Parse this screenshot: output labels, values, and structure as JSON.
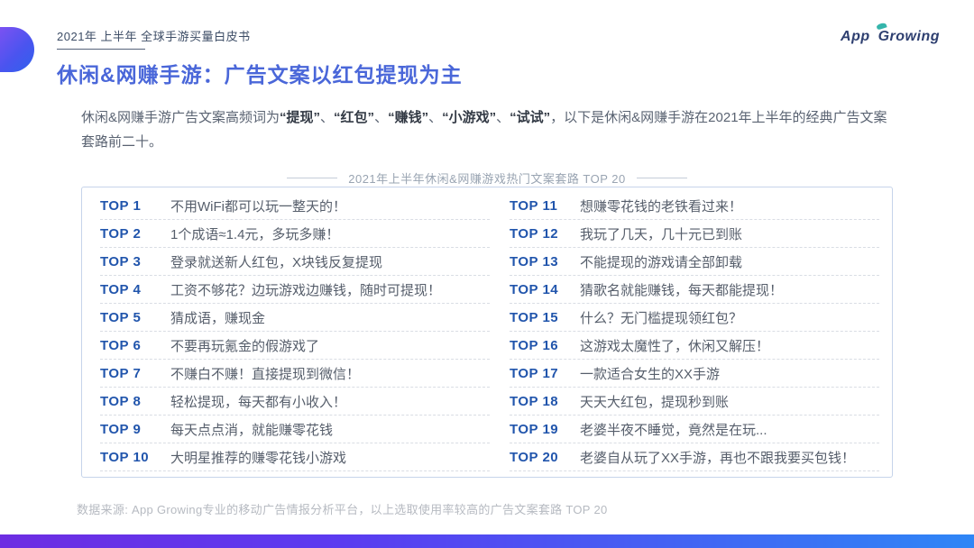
{
  "header": {
    "kicker": "2021年 上半年 全球手游买量白皮书",
    "title": "休闲&网赚手游：广告文案以红包提现为主",
    "logo_app": "App",
    "logo_growing": "Growing"
  },
  "intro": {
    "segments": [
      {
        "text": "休闲&网赚手游广告文案高频词为",
        "bold": false
      },
      {
        "text": "“提现”",
        "bold": true
      },
      {
        "text": "、",
        "bold": false
      },
      {
        "text": "“红包”",
        "bold": true
      },
      {
        "text": "、",
        "bold": false
      },
      {
        "text": "“赚钱”",
        "bold": true
      },
      {
        "text": "、",
        "bold": false
      },
      {
        "text": "“小游戏”",
        "bold": true
      },
      {
        "text": "、",
        "bold": false
      },
      {
        "text": "“试试”",
        "bold": true
      },
      {
        "text": "，以下是休闲&网赚手游在2021年上半年的经典广告文案套路前二十。",
        "bold": false
      }
    ]
  },
  "table": {
    "title": "2021年上半年休闲&网赚游戏热门文案套路 TOP 20",
    "columns": [
      {
        "rows": [
          {
            "rank": "TOP 1",
            "text": "不用WiFi都可以玩一整天的！"
          },
          {
            "rank": "TOP 2",
            "text": "1个成语≈1.4元，多玩多赚！"
          },
          {
            "rank": "TOP 3",
            "text": "登录就送新人红包，X块钱反复提现"
          },
          {
            "rank": "TOP 4",
            "text": "工资不够花？边玩游戏边赚钱，随时可提现！"
          },
          {
            "rank": "TOP 5",
            "text": "猜成语，赚现金"
          },
          {
            "rank": "TOP 6",
            "text": "不要再玩氪金的假游戏了"
          },
          {
            "rank": "TOP 7",
            "text": "不赚白不赚！直接提现到微信！"
          },
          {
            "rank": "TOP 8",
            "text": "轻松提现，每天都有小收入！"
          },
          {
            "rank": "TOP 9",
            "text": "每天点点消，就能赚零花钱"
          },
          {
            "rank": "TOP 10",
            "text": "大明星推荐的赚零花钱小游戏"
          }
        ]
      },
      {
        "rows": [
          {
            "rank": "TOP 11",
            "text": "想赚零花钱的老铁看过来！"
          },
          {
            "rank": "TOP 12",
            "text": "我玩了几天，几十元已到账"
          },
          {
            "rank": "TOP 13",
            "text": "不能提现的游戏请全部卸载"
          },
          {
            "rank": "TOP 14",
            "text": "猜歌名就能赚钱，每天都能提现！"
          },
          {
            "rank": "TOP 15",
            "text": "什么？无门槛提现领红包？"
          },
          {
            "rank": "TOP 16",
            "text": "这游戏太魔性了，休闲又解压！"
          },
          {
            "rank": "TOP 17",
            "text": "一款适合女生的XX手游"
          },
          {
            "rank": "TOP 18",
            "text": "天天大红包，提现秒到账"
          },
          {
            "rank": "TOP 19",
            "text": "老婆半夜不睡觉，竟然是在玩..."
          },
          {
            "rank": "TOP 20",
            "text": "老婆自从玩了XX手游，再也不跟我要买包钱！"
          }
        ]
      }
    ]
  },
  "footnote": "数据来源: App Growing专业的移动广告情报分析平台，以上选取使用率较高的广告文案套路 TOP 20",
  "colors": {
    "title_blue": "#4a67d9",
    "rank_blue": "#2155ac",
    "pill_gradient_start": "#7b52f2",
    "pill_gradient_end": "#2f62ee",
    "bottom_bar_start": "#6d2de2",
    "bottom_bar_end": "#2e86f6",
    "logo_navy": "#2e3f70",
    "logo_leaf_teal": "#35b5ab",
    "table_border": "#c6d4ea"
  }
}
